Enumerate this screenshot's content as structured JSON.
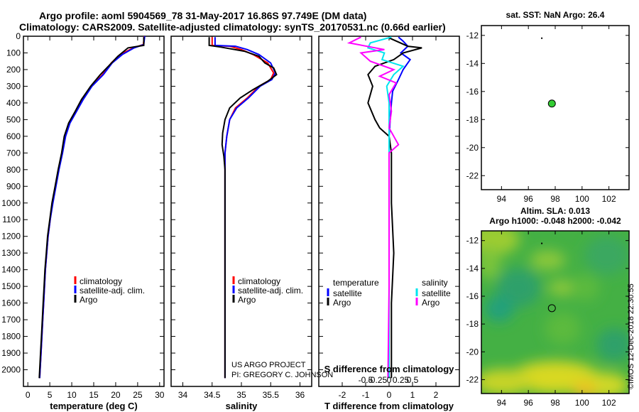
{
  "header": {
    "line1": "Argo profile: aoml 5904569_78 31-May-2017 16.86S 97.749E (DM data)",
    "line2": "Climatology: CARS2009. Satellite-adjusted climatology: synTS_20170531.nc (0.66d earlier)"
  },
  "credit": {
    "line1": "US ARGO PROJECT",
    "line2": "PI: GREGORY C. JOHNSON"
  },
  "imos_stamp": "©IMOS 12-Dec-2018 22:30:55",
  "colors": {
    "climatology": "#ff0000",
    "satellite": "#0000ff",
    "argo": "#000000",
    "sat_salinity": "#00e5ee",
    "argo_salinity": "#ff00ff",
    "argo_marker": "#33cc33"
  },
  "chart_data": [
    {
      "id": "temperature",
      "type": "line",
      "xlabel": "temperature (deg C)",
      "ylabel": "",
      "xlim": [
        -1,
        31
      ],
      "ylim": [
        2100,
        0
      ],
      "xticks": [
        0,
        5,
        10,
        15,
        20,
        25,
        30
      ],
      "xtick_labels": [
        "0",
        "5",
        "10",
        "15",
        "20",
        "25",
        "30"
      ],
      "yticks": [
        0,
        100,
        200,
        300,
        400,
        500,
        600,
        700,
        800,
        900,
        1000,
        1100,
        1200,
        1300,
        1400,
        1500,
        1600,
        1700,
        1800,
        1900,
        2000
      ],
      "ytick_labels": [
        "0",
        "100",
        "200",
        "300",
        "400",
        "500",
        "600",
        "700",
        "800",
        "900",
        "1000",
        "1100",
        "1200",
        "1300",
        "1400",
        "1500",
        "1600",
        "1700",
        "1800",
        "1900",
        "2000"
      ],
      "legend": [
        "climatology",
        "satellite-adj. clim.",
        "Argo"
      ],
      "series": [
        {
          "name": "climatology",
          "color": "#ff0000",
          "points": [
            [
              26.5,
              0
            ],
            [
              26.3,
              50
            ],
            [
              24,
              70
            ],
            [
              21,
              110
            ],
            [
              19,
              160
            ],
            [
              17,
              230
            ],
            [
              14.5,
              300
            ],
            [
              12.5,
              380
            ],
            [
              11,
              450
            ],
            [
              9.5,
              520
            ],
            [
              8.5,
              600
            ],
            [
              7.8,
              700
            ],
            [
              7,
              800
            ],
            [
              6.3,
              900
            ],
            [
              5.6,
              1000
            ],
            [
              5.1,
              1100
            ],
            [
              4.6,
              1200
            ],
            [
              4.3,
              1300
            ],
            [
              4,
              1400
            ],
            [
              3.8,
              1500
            ],
            [
              3.6,
              1600
            ],
            [
              3.4,
              1700
            ],
            [
              3.2,
              1800
            ],
            [
              3,
              1900
            ],
            [
              2.8,
              2000
            ],
            [
              2.7,
              2050
            ]
          ]
        },
        {
          "name": "satellite-adj. clim.",
          "color": "#0000ff",
          "points": [
            [
              26.6,
              0
            ],
            [
              26.4,
              50
            ],
            [
              24.2,
              70
            ],
            [
              21.5,
              110
            ],
            [
              19.2,
              160
            ],
            [
              17.2,
              230
            ],
            [
              14.6,
              300
            ],
            [
              12.6,
              380
            ],
            [
              11.1,
              450
            ],
            [
              9.6,
              520
            ],
            [
              8.6,
              600
            ],
            [
              7.9,
              700
            ],
            [
              7.1,
              800
            ],
            [
              6.4,
              900
            ],
            [
              5.7,
              1000
            ],
            [
              5.1,
              1100
            ],
            [
              4.6,
              1200
            ],
            [
              4.3,
              1300
            ],
            [
              4,
              1400
            ],
            [
              3.8,
              1500
            ],
            [
              3.6,
              1600
            ],
            [
              3.4,
              1700
            ],
            [
              3.2,
              1800
            ],
            [
              3,
              1900
            ],
            [
              2.8,
              2000
            ],
            [
              2.7,
              2050
            ]
          ]
        },
        {
          "name": "Argo",
          "color": "#000000",
          "points": [
            [
              26.4,
              5
            ],
            [
              26.4,
              55
            ],
            [
              22.8,
              70
            ],
            [
              20.5,
              120
            ],
            [
              18.7,
              170
            ],
            [
              16.5,
              230
            ],
            [
              14.3,
              300
            ],
            [
              12.2,
              380
            ],
            [
              10.8,
              450
            ],
            [
              9.3,
              520
            ],
            [
              8.3,
              600
            ],
            [
              7.7,
              700
            ],
            [
              6.9,
              800
            ],
            [
              6.2,
              900
            ],
            [
              5.5,
              1000
            ],
            [
              5,
              1100
            ],
            [
              4.5,
              1200
            ],
            [
              4.2,
              1300
            ],
            [
              3.9,
              1400
            ],
            [
              3.7,
              1500
            ],
            [
              3.5,
              1600
            ],
            [
              3.3,
              1700
            ],
            [
              3.1,
              1800
            ],
            [
              2.9,
              1900
            ],
            [
              2.7,
              2000
            ],
            [
              2.6,
              2050
            ]
          ]
        }
      ]
    },
    {
      "id": "salinity",
      "type": "line",
      "xlabel": "salinity",
      "ylabel": "",
      "xlim": [
        33.8,
        36.2
      ],
      "ylim": [
        2100,
        0
      ],
      "xticks": [
        34,
        34.5,
        35,
        35.5,
        36
      ],
      "xtick_labels": [
        "34",
        "34.5",
        "35",
        "35.5",
        "36"
      ],
      "legend": [
        "climatology",
        "satellite-adj. clim.",
        "Argo"
      ],
      "series": [
        {
          "name": "climatology",
          "color": "#ff0000",
          "points": [
            [
              34.5,
              5
            ],
            [
              34.5,
              55
            ],
            [
              34.8,
              60
            ],
            [
              35,
              80
            ],
            [
              35.2,
              110
            ],
            [
              35.45,
              160
            ],
            [
              35.55,
              220
            ],
            [
              35.5,
              260
            ],
            [
              35.3,
              300
            ],
            [
              35.1,
              370
            ],
            [
              34.9,
              430
            ],
            [
              34.8,
              500
            ],
            [
              34.75,
              600
            ],
            [
              34.72,
              700
            ],
            [
              34.72,
              800
            ],
            [
              34.72,
              1000
            ],
            [
              34.72,
              1500
            ],
            [
              34.72,
              2050
            ]
          ]
        },
        {
          "name": "satellite-adj. clim.",
          "color": "#0000ff",
          "points": [
            [
              34.55,
              5
            ],
            [
              34.55,
              55
            ],
            [
              34.9,
              60
            ],
            [
              35.1,
              80
            ],
            [
              35.3,
              110
            ],
            [
              35.5,
              160
            ],
            [
              35.58,
              220
            ],
            [
              35.52,
              260
            ],
            [
              35.32,
              300
            ],
            [
              35.12,
              370
            ],
            [
              34.92,
              430
            ],
            [
              34.8,
              500
            ],
            [
              34.75,
              600
            ],
            [
              34.72,
              700
            ],
            [
              34.72,
              800
            ],
            [
              34.72,
              1000
            ],
            [
              34.72,
              1500
            ],
            [
              34.72,
              2050
            ]
          ]
        },
        {
          "name": "Argo",
          "color": "#000000",
          "points": [
            [
              34.45,
              5
            ],
            [
              34.45,
              55
            ],
            [
              34.65,
              65
            ],
            [
              35.05,
              90
            ],
            [
              35.3,
              120
            ],
            [
              35.4,
              160
            ],
            [
              35.55,
              190
            ],
            [
              35.6,
              230
            ],
            [
              35.45,
              270
            ],
            [
              35.2,
              320
            ],
            [
              34.98,
              370
            ],
            [
              34.8,
              430
            ],
            [
              34.72,
              500
            ],
            [
              34.68,
              580
            ],
            [
              34.67,
              650
            ],
            [
              34.7,
              720
            ],
            [
              34.72,
              800
            ],
            [
              34.72,
              900
            ],
            [
              34.72,
              1100
            ],
            [
              34.72,
              1500
            ],
            [
              34.72,
              2050
            ]
          ]
        }
      ]
    },
    {
      "id": "difference",
      "type": "line",
      "xlabel": "T difference from climatology",
      "top_xlabel": "S difference from climatology",
      "xlim": [
        -3,
        3
      ],
      "ylim": [
        2100,
        0
      ],
      "xticks": [
        -2,
        -1,
        0,
        1,
        2
      ],
      "xtick_labels": [
        "-2",
        "-1",
        "0",
        "1",
        "2"
      ],
      "top_xticks": [
        -1,
        -0.5,
        0,
        0.5,
        1
      ],
      "top_xtick_labels": [
        "-0.5",
        "-0.25",
        "0",
        "0.25",
        "0.5"
      ],
      "legend_left_title": "temperature",
      "legend_right_title": "salinity",
      "legend_left": [
        "satellite",
        "Argo"
      ],
      "legend_right": [
        "satellite",
        "Argo"
      ],
      "series": [
        {
          "name": "T satellite",
          "color": "#0000ff",
          "points": [
            [
              0.4,
              5
            ],
            [
              0.6,
              30
            ],
            [
              0.8,
              60
            ],
            [
              0.5,
              100
            ],
            [
              0.9,
              140
            ],
            [
              0.6,
              200
            ],
            [
              0.4,
              260
            ],
            [
              0.15,
              330
            ],
            [
              0.1,
              400
            ],
            [
              0.05,
              500
            ],
            [
              0,
              600
            ],
            [
              0,
              700
            ],
            [
              0,
              800
            ],
            [
              0,
              1000
            ],
            [
              0,
              1500
            ],
            [
              0,
              2050
            ]
          ]
        },
        {
          "name": "T Argo",
          "color": "#000000",
          "points": [
            [
              0,
              10
            ],
            [
              0.8,
              60
            ],
            [
              1.4,
              70
            ],
            [
              0.6,
              100
            ],
            [
              0.2,
              140
            ],
            [
              -0.6,
              180
            ],
            [
              -0.9,
              230
            ],
            [
              -0.7,
              300
            ],
            [
              -0.9,
              400
            ],
            [
              -0.6,
              500
            ],
            [
              -0.4,
              550
            ],
            [
              0,
              600
            ],
            [
              0.1,
              700
            ],
            [
              0.1,
              800
            ],
            [
              0.1,
              1000
            ],
            [
              0.2,
              1300
            ],
            [
              0.1,
              1600
            ],
            [
              0.1,
              2050
            ]
          ]
        },
        {
          "name": "S satellite",
          "color": "#00e5ee",
          "points": [
            [
              0.1,
              5
            ],
            [
              -0.8,
              40
            ],
            [
              -0.9,
              70
            ],
            [
              -0.2,
              100
            ],
            [
              -0.3,
              140
            ],
            [
              0.6,
              180
            ],
            [
              0.2,
              230
            ],
            [
              -0.1,
              300
            ],
            [
              0,
              400
            ],
            [
              0,
              500
            ],
            [
              0,
              600
            ],
            [
              0,
              700
            ],
            [
              0,
              800
            ],
            [
              0,
              1000
            ],
            [
              0,
              1500
            ],
            [
              0,
              2050
            ]
          ]
        },
        {
          "name": "S Argo",
          "color": "#ff00ff",
          "points": [
            [
              -1.2,
              5
            ],
            [
              -1.7,
              40
            ],
            [
              -0.2,
              80
            ],
            [
              -1.2,
              100
            ],
            [
              -0.8,
              150
            ],
            [
              0.2,
              200
            ],
            [
              -0.4,
              240
            ],
            [
              0.3,
              280
            ],
            [
              0,
              350
            ],
            [
              0.1,
              450
            ],
            [
              0,
              550
            ],
            [
              0.4,
              650
            ],
            [
              0,
              700
            ],
            [
              0,
              800
            ],
            [
              0,
              1000
            ],
            [
              0,
              1500
            ],
            [
              -0.05,
              2050
            ]
          ]
        }
      ]
    },
    {
      "id": "sst_map",
      "type": "scatter",
      "title": "sat. SST: NaN Argo: 26.4",
      "xlim": [
        92.5,
        103.5
      ],
      "ylim": [
        -23,
        -11.3
      ],
      "xticks": [
        94,
        96,
        98,
        100,
        102
      ],
      "xtick_labels": [
        "94",
        "96",
        "98",
        "100",
        "102"
      ],
      "yticks": [
        -12,
        -14,
        -16,
        -18,
        -20,
        -22
      ],
      "ytick_labels": [
        "-12",
        "-14",
        "-16",
        "-18",
        "-20",
        "-22"
      ],
      "points": [
        {
          "name": "argo-position",
          "x": 97.75,
          "y": -16.86
        },
        {
          "name": "small-mark",
          "x": 97.0,
          "y": -12.2
        }
      ]
    },
    {
      "id": "sla_map",
      "type": "heatmap",
      "title1": "Altim. SLA: 0.013",
      "title2": "Argo h1000: -0.048 h2000: -0.042",
      "xlim": [
        92.5,
        103.5
      ],
      "ylim": [
        -23,
        -11.3
      ],
      "xticks": [
        94,
        96,
        98,
        100,
        102
      ],
      "xtick_labels": [
        "94",
        "96",
        "98",
        "100",
        "102"
      ],
      "yticks": [
        -12,
        -14,
        -16,
        -18,
        -20,
        -22
      ],
      "ytick_labels": [
        "-12",
        "-14",
        "-16",
        "-18",
        "-20",
        "-22"
      ],
      "points": [
        {
          "name": "argo-position",
          "x": 97.75,
          "y": -16.86
        },
        {
          "name": "small-mark",
          "x": 97.0,
          "y": -12.2
        }
      ]
    }
  ]
}
